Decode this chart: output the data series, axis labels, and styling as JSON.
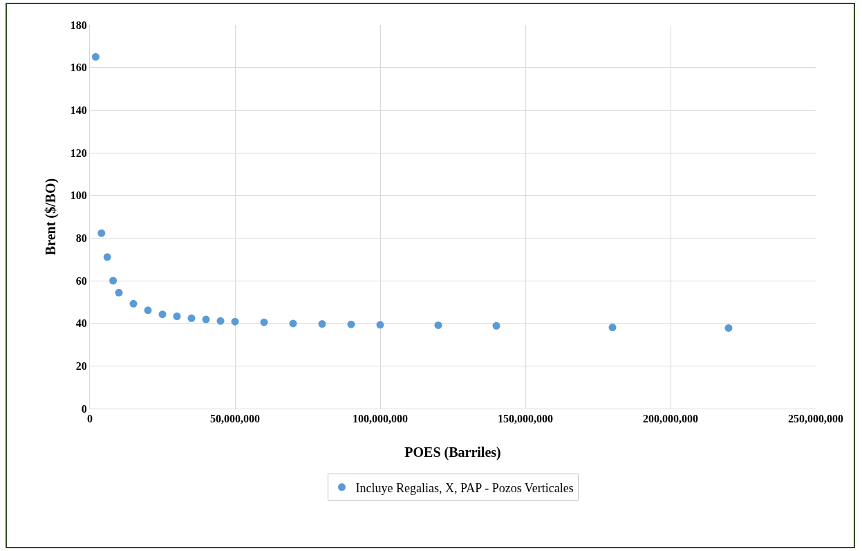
{
  "chart_data": {
    "type": "scatter",
    "xlabel": "POES (Barriles)",
    "ylabel": "Brent ($/BO)",
    "x": [
      2000000,
      4000000,
      6000000,
      8000000,
      10000000,
      15000000,
      20000000,
      25000000,
      30000000,
      35000000,
      40000000,
      45000000,
      50000000,
      60000000,
      70000000,
      80000000,
      90000000,
      100000000,
      120000000,
      140000000,
      180000000,
      220000000
    ],
    "series": [
      {
        "name": "Incluye Regalias, X, PAP - Pozos Verticales",
        "color": "#5b9bd5",
        "values": [
          165,
          82.3,
          71.1,
          60,
          54.4,
          49.2,
          46.1,
          44.2,
          43.3,
          42.4,
          41.8,
          41.1,
          40.8,
          40.5,
          39.9,
          39.7,
          39.5,
          39.3,
          39.1,
          38.8,
          38.1,
          37.8
        ]
      }
    ],
    "xlim": [
      0,
      250000000
    ],
    "xticks": [
      0,
      {
        "value": 50000000,
        "label": "50,000,000"
      },
      {
        "value": 100000000,
        "label": "100,000,000"
      },
      {
        "value": 150000000,
        "label": "150,000,000"
      },
      {
        "value": 200000000,
        "label": "200,000,000"
      },
      {
        "value": 250000000,
        "label": "250,000,000"
      }
    ],
    "ylim": [
      0,
      180
    ],
    "yticks": [
      0,
      20,
      40,
      60,
      80,
      100,
      120,
      140,
      160,
      180
    ],
    "grid": true,
    "legend": "bottom",
    "marker": "circle"
  }
}
